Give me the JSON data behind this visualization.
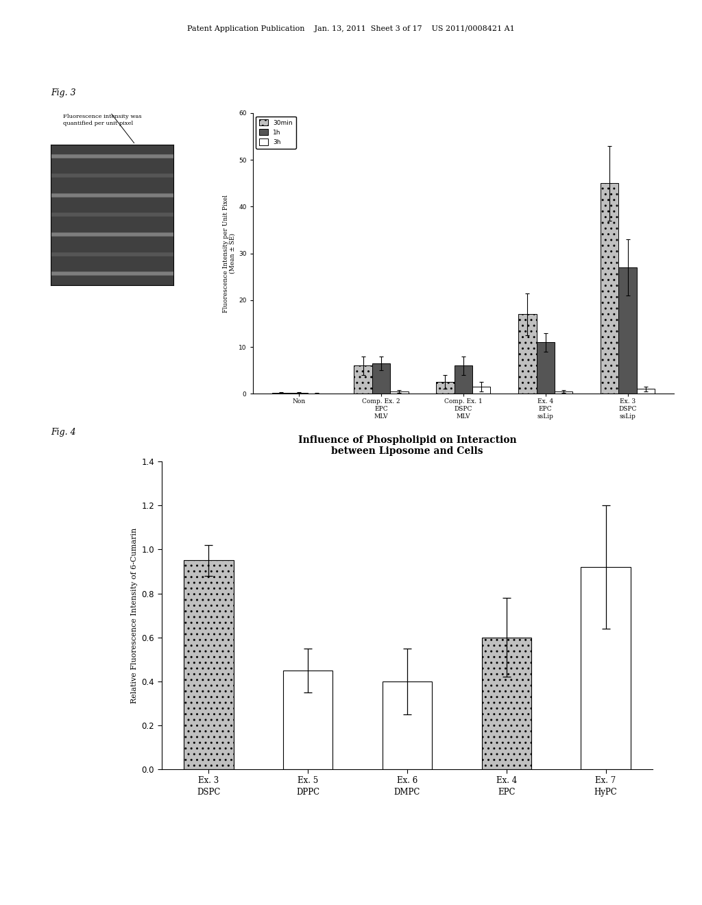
{
  "header_text": "Patent Application Publication    Jan. 13, 2011  Sheet 3 of 17    US 2011/0008421 A1",
  "fig3_label": "Fig. 3",
  "fig4_label": "Fig. 4",
  "fig3_note": "Fluorescence intensity was\nquantified per unit pixel",
  "fig3_ylabel": "Fluorescence Intensity per Unit Pixel\n(Mean ± SE)",
  "fig3_ylim": [
    0,
    60
  ],
  "fig3_yticks": [
    0,
    10,
    20,
    30,
    40,
    50,
    60
  ],
  "fig3_groups": [
    "Non",
    "Comp. Ex. 2\nEPC\nMLV",
    "Comp. Ex. 1\nDSPC\nMLV",
    "Ex. 4\nEPC\nssLip",
    "Ex. 3\nDSPC\nssLip"
  ],
  "fig3_series": [
    "30min",
    "1h",
    "3h"
  ],
  "fig3_data_30min": [
    0.2,
    6.0,
    2.5,
    17.0,
    45.0
  ],
  "fig3_data_1h": [
    0.2,
    6.5,
    6.0,
    11.0,
    27.0
  ],
  "fig3_data_3h": [
    0.1,
    0.5,
    1.5,
    0.5,
    1.0
  ],
  "fig3_errors_30min": [
    0.1,
    2.0,
    1.5,
    4.5,
    8.0
  ],
  "fig3_errors_1h": [
    0.1,
    1.5,
    2.0,
    2.0,
    6.0
  ],
  "fig3_errors_3h": [
    0.1,
    0.3,
    1.0,
    0.3,
    0.5
  ],
  "fig3_bar_color_30min": "#c0c0c0",
  "fig3_bar_color_1h": "#555555",
  "fig3_bar_color_3h": "#ffffff",
  "fig3_hatch_30min": "..",
  "fig3_hatch_1h": "",
  "fig3_hatch_3h": "",
  "fig4_title_line1": "Influence of Phospholipid on Interaction",
  "fig4_title_line2": "between Liposome and Cells",
  "fig4_ylabel": "Relative Fluorescence Intensity of 6-Cumarin",
  "fig4_ylim": [
    0,
    1.4
  ],
  "fig4_yticks": [
    0,
    0.2,
    0.4,
    0.6,
    0.8,
    1.0,
    1.2,
    1.4
  ],
  "fig4_group_labels_line1": [
    "Ex. 3",
    "Ex. 5",
    "Ex. 6",
    "Ex. 4",
    "Ex. 7"
  ],
  "fig4_group_labels_line2": [
    "DSPC",
    "DPPC",
    "DMPC",
    "EPC",
    "HyPC"
  ],
  "fig4_values": [
    0.95,
    0.45,
    0.4,
    0.6,
    0.92
  ],
  "fig4_errors": [
    0.07,
    0.1,
    0.15,
    0.18,
    0.28
  ],
  "fig4_colors": [
    "#c0c0c0",
    "#ffffff",
    "#ffffff",
    "#c0c0c0",
    "#ffffff"
  ],
  "fig4_hatches": [
    "..",
    "",
    "",
    "..",
    ""
  ],
  "bg_color": "#ffffff",
  "text_color": "#000000"
}
